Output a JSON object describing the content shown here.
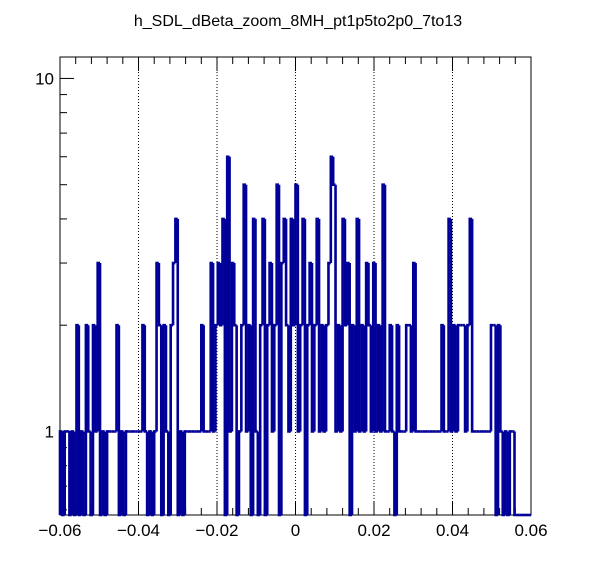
{
  "chart_data": {
    "type": "bar",
    "title": "h_SDL_dBeta_zoom_8MH_pt1p5to2p0_7to13",
    "xlabel": "",
    "ylabel": "",
    "xlim": [
      -0.06,
      0.06
    ],
    "ylim": [
      0.58,
      11.5
    ],
    "y_scale": "log",
    "grid": "x-dotted",
    "line_color": "#000099",
    "x_ticks": [
      -0.06,
      -0.04,
      -0.02,
      0,
      0.02,
      0.04,
      0.06
    ],
    "x_tick_labels": [
      "−0.06",
      "−0.04",
      "−0.02",
      "0",
      "0.02",
      "0.04",
      "0.06"
    ],
    "y_ticks": [
      1,
      10
    ],
    "y_tick_labels": [
      "1",
      "10"
    ],
    "bin_width": 0.0006,
    "x": [
      -0.0597,
      -0.0591,
      -0.0585,
      -0.0579,
      -0.0573,
      -0.0567,
      -0.0561,
      -0.0555,
      -0.0549,
      -0.0543,
      -0.0537,
      -0.0531,
      -0.0525,
      -0.0519,
      -0.0513,
      -0.0507,
      -0.0501,
      -0.0495,
      -0.0489,
      -0.0483,
      -0.0477,
      -0.0471,
      -0.0465,
      -0.0459,
      -0.0453,
      -0.0447,
      -0.0441,
      -0.0435,
      -0.0429,
      -0.0423,
      -0.0417,
      -0.0411,
      -0.0405,
      -0.0399,
      -0.0393,
      -0.0387,
      -0.0381,
      -0.0375,
      -0.0369,
      -0.0363,
      -0.0357,
      -0.0351,
      -0.0345,
      -0.0339,
      -0.0333,
      -0.0327,
      -0.0321,
      -0.0315,
      -0.0309,
      -0.0303,
      -0.0297,
      -0.0291,
      -0.0285,
      -0.0279,
      -0.0273,
      -0.0267,
      -0.0261,
      -0.0255,
      -0.0249,
      -0.0243,
      -0.0237,
      -0.0231,
      -0.0225,
      -0.0219,
      -0.0213,
      -0.0207,
      -0.0201,
      -0.0195,
      -0.0189,
      -0.0183,
      -0.0177,
      -0.0171,
      -0.0165,
      -0.0159,
      -0.0153,
      -0.0147,
      -0.0141,
      -0.0135,
      -0.0129,
      -0.0123,
      -0.0117,
      -0.0111,
      -0.0105,
      -0.0099,
      -0.0093,
      -0.0087,
      -0.0081,
      -0.0075,
      -0.0069,
      -0.0063,
      -0.0057,
      -0.0051,
      -0.0045,
      -0.0039,
      -0.0033,
      -0.0027,
      -0.0021,
      -0.0015,
      -0.0009,
      -0.0003,
      0.0003,
      0.0009,
      0.0015,
      0.0021,
      0.0027,
      0.0033,
      0.0039,
      0.0045,
      0.0051,
      0.0057,
      0.0063,
      0.0069,
      0.0075,
      0.0081,
      0.0087,
      0.0093,
      0.0099,
      0.0105,
      0.0111,
      0.0117,
      0.0123,
      0.0129,
      0.0135,
      0.0141,
      0.0147,
      0.0153,
      0.0159,
      0.0165,
      0.0171,
      0.0177,
      0.0183,
      0.0189,
      0.0195,
      0.0201,
      0.0207,
      0.0213,
      0.0219,
      0.0225,
      0.0231,
      0.0237,
      0.0243,
      0.0249,
      0.0255,
      0.0261,
      0.0267,
      0.0273,
      0.0279,
      0.0285,
      0.0291,
      0.0297,
      0.0303,
      0.0309,
      0.0315,
      0.0321,
      0.0327,
      0.0333,
      0.0339,
      0.0345,
      0.0351,
      0.0357,
      0.0363,
      0.0369,
      0.0375,
      0.0381,
      0.0387,
      0.0393,
      0.0399,
      0.0405,
      0.0411,
      0.0417,
      0.0423,
      0.0429,
      0.0435,
      0.0441,
      0.0447,
      0.0453,
      0.0459,
      0.0465,
      0.0471,
      0.0477,
      0.0483,
      0.0489,
      0.0495,
      0.0501,
      0.0507,
      0.0513,
      0.0519,
      0.0525,
      0.0531,
      0.0537,
      0.0543,
      0.0549,
      0.0555,
      0.0561,
      0.0567,
      0.0573,
      0.0579,
      0.0585,
      0.0591,
      0.0597
    ],
    "values": [
      1,
      0,
      1,
      1,
      0,
      1,
      0,
      2,
      0,
      1,
      0,
      2,
      1,
      0,
      2,
      1,
      3,
      0,
      1,
      0,
      1,
      1,
      1,
      1,
      2,
      0,
      1,
      0,
      1,
      1,
      1,
      1,
      1,
      1,
      1,
      2,
      1,
      0,
      1,
      0,
      1,
      3,
      2,
      0,
      2,
      1,
      0,
      2,
      3,
      4,
      0,
      1,
      0,
      1,
      1,
      1,
      1,
      1,
      1,
      1,
      2,
      1,
      1,
      1,
      3,
      1,
      2,
      3,
      2,
      4,
      0,
      6,
      1,
      3,
      2,
      0,
      1,
      2,
      5,
      1,
      2,
      0,
      4,
      1,
      0,
      2,
      4,
      0,
      2,
      3,
      1,
      2,
      5,
      0,
      3,
      4,
      2,
      1,
      4,
      2,
      5,
      1,
      2,
      4,
      0,
      2,
      3,
      1,
      2,
      4,
      1,
      2,
      1,
      2,
      3,
      6,
      5,
      1,
      2,
      1,
      4,
      2,
      3,
      0,
      2,
      1,
      4,
      1,
      2,
      1,
      3,
      2,
      1,
      3,
      1,
      2,
      1,
      5,
      1,
      1,
      2,
      1,
      0,
      2,
      1,
      1,
      1,
      2,
      2,
      1,
      3,
      1,
      1,
      1,
      1,
      1,
      1,
      1,
      1,
      1,
      1,
      1,
      2,
      1,
      1,
      4,
      1,
      2,
      1,
      2,
      2,
      2,
      1,
      2,
      4,
      1,
      1,
      1,
      1,
      1,
      1,
      1,
      1,
      2,
      2,
      0,
      2,
      1,
      0,
      1,
      0,
      1,
      1,
      0,
      0,
      0,
      0,
      0,
      0,
      0
    ]
  }
}
